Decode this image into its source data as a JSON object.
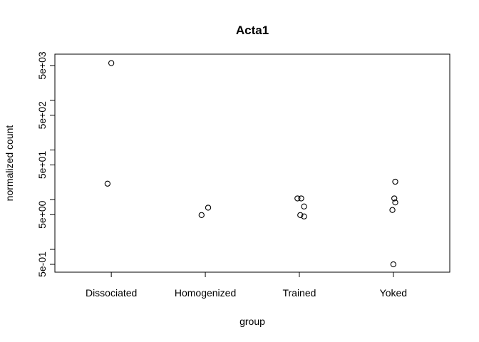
{
  "chart_data": {
    "type": "scatter",
    "title": "Acta1",
    "xlabel": "group",
    "ylabel": "normalized count",
    "y_scale": "log",
    "categories": [
      "Dissociated",
      "Homogenized",
      "Trained",
      "Yoked"
    ],
    "y_ticks": [
      0.5,
      1,
      5,
      10,
      50,
      100,
      500,
      1000,
      5000
    ],
    "y_tick_labels": [
      "5e-01",
      "",
      "5e+00",
      "",
      "5e+01",
      "",
      "5e+02",
      "",
      "5e+03"
    ],
    "points": [
      {
        "group": "Dissociated",
        "jitter": 0.0,
        "y": 5600
      },
      {
        "group": "Dissociated",
        "jitter": -0.04,
        "y": 21
      },
      {
        "group": "Homogenized",
        "jitter": -0.04,
        "y": 4.9
      },
      {
        "group": "Homogenized",
        "jitter": 0.03,
        "y": 6.9
      },
      {
        "group": "Trained",
        "jitter": -0.02,
        "y": 10.6
      },
      {
        "group": "Trained",
        "jitter": 0.02,
        "y": 10.6
      },
      {
        "group": "Trained",
        "jitter": 0.05,
        "y": 7.3
      },
      {
        "group": "Trained",
        "jitter": 0.01,
        "y": 4.9
      },
      {
        "group": "Trained",
        "jitter": 0.05,
        "y": 4.6
      },
      {
        "group": "Yoked",
        "jitter": 0.02,
        "y": 23
      },
      {
        "group": "Yoked",
        "jitter": 0.01,
        "y": 10.6
      },
      {
        "group": "Yoked",
        "jitter": 0.02,
        "y": 8.8
      },
      {
        "group": "Yoked",
        "jitter": -0.01,
        "y": 6.2
      },
      {
        "group": "Yoked",
        "jitter": 0.0,
        "y": 0.5
      }
    ],
    "ylim": [
      0.4,
      7500
    ],
    "grid": false,
    "legend": "none"
  }
}
